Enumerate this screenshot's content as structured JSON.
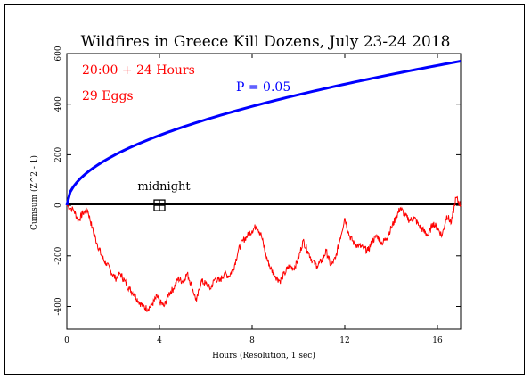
{
  "chart_data": {
    "type": "line",
    "title": "Wildfires in Greece Kill Dozens, July 23-24 2018",
    "xlabel": "Hours (Resolution, 1 sec)",
    "ylabel": "Cumsum (Z^2 - 1)",
    "xlim": [
      0,
      17
    ],
    "ylim": [
      -490,
      600
    ],
    "xticks": [
      0,
      4,
      8,
      12,
      16
    ],
    "yticks": [
      -400,
      -200,
      0,
      200,
      400,
      600
    ],
    "annotations": {
      "time_window": "20:00 + 24 Hours",
      "eggs": "29 Eggs",
      "p_label": "P = 0.05",
      "midnight_label": "midnight",
      "midnight_x": 4
    },
    "colors": {
      "cumsum": "#ff0000",
      "p_curve": "#0000ff",
      "axis": "#000000",
      "text_red": "#ff0000",
      "text_blue": "#0000ff"
    },
    "series": [
      {
        "name": "cumsum",
        "x": [
          0,
          0.3,
          0.5,
          0.7,
          0.9,
          1.1,
          1.3,
          1.5,
          1.7,
          1.9,
          2.1,
          2.3,
          2.5,
          2.7,
          2.9,
          3.1,
          3.3,
          3.5,
          3.7,
          3.9,
          4.0,
          4.2,
          4.4,
          4.6,
          4.8,
          5.0,
          5.2,
          5.4,
          5.6,
          5.8,
          6.0,
          6.2,
          6.4,
          6.6,
          6.8,
          7.0,
          7.2,
          7.4,
          7.6,
          7.8,
          8.0,
          8.2,
          8.4,
          8.6,
          8.8,
          9.0,
          9.2,
          9.4,
          9.6,
          9.8,
          10.0,
          10.2,
          10.4,
          10.6,
          10.8,
          11.0,
          11.2,
          11.4,
          11.6,
          11.8,
          12.0,
          12.2,
          12.4,
          12.6,
          12.8,
          13.0,
          13.2,
          13.4,
          13.6,
          13.8,
          14.0,
          14.2,
          14.4,
          14.6,
          14.8,
          15.0,
          15.2,
          15.4,
          15.6,
          15.8,
          16.0,
          16.2,
          16.4,
          16.6,
          16.8,
          17.0
        ],
        "y": [
          0,
          -20,
          -60,
          -30,
          -20,
          -90,
          -150,
          -200,
          -230,
          -260,
          -290,
          -270,
          -300,
          -330,
          -350,
          -380,
          -400,
          -410,
          -390,
          -360,
          -380,
          -400,
          -350,
          -330,
          -290,
          -300,
          -270,
          -320,
          -380,
          -300,
          -310,
          -330,
          -290,
          -300,
          -270,
          -280,
          -250,
          -180,
          -140,
          -120,
          -100,
          -80,
          -120,
          -200,
          -250,
          -280,
          -300,
          -270,
          -240,
          -250,
          -210,
          -140,
          -180,
          -220,
          -240,
          -220,
          -180,
          -240,
          -210,
          -130,
          -50,
          -120,
          -150,
          -160,
          -170,
          -180,
          -140,
          -120,
          -150,
          -130,
          -90,
          -50,
          -10,
          -40,
          -60,
          -50,
          -80,
          -100,
          -120,
          -70,
          -90,
          -120,
          -40,
          -70,
          30,
          0
        ]
      },
      {
        "name": "P = 0.05",
        "function": "sqrt",
        "x_range": [
          0,
          17
        ],
        "y_at_end": 570
      }
    ]
  }
}
